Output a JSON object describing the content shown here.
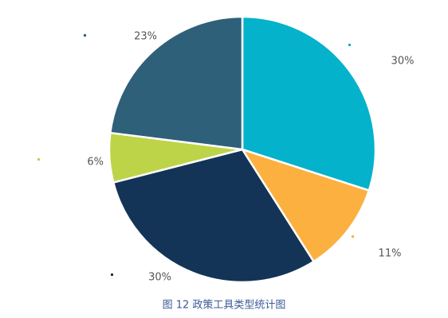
{
  "chart_data": {
    "type": "pie",
    "caption": "图 12 政策工具类型统计图",
    "categories": [
      null,
      null,
      null,
      null,
      null
    ],
    "values": [
      30,
      11,
      30,
      6,
      23
    ],
    "value_labels": [
      "30%",
      "11%",
      "30%",
      "6%",
      "23%"
    ],
    "colors": [
      "#04b2cb",
      "#fbb040",
      "#133457",
      "#bdd448",
      "#2f6079"
    ]
  }
}
